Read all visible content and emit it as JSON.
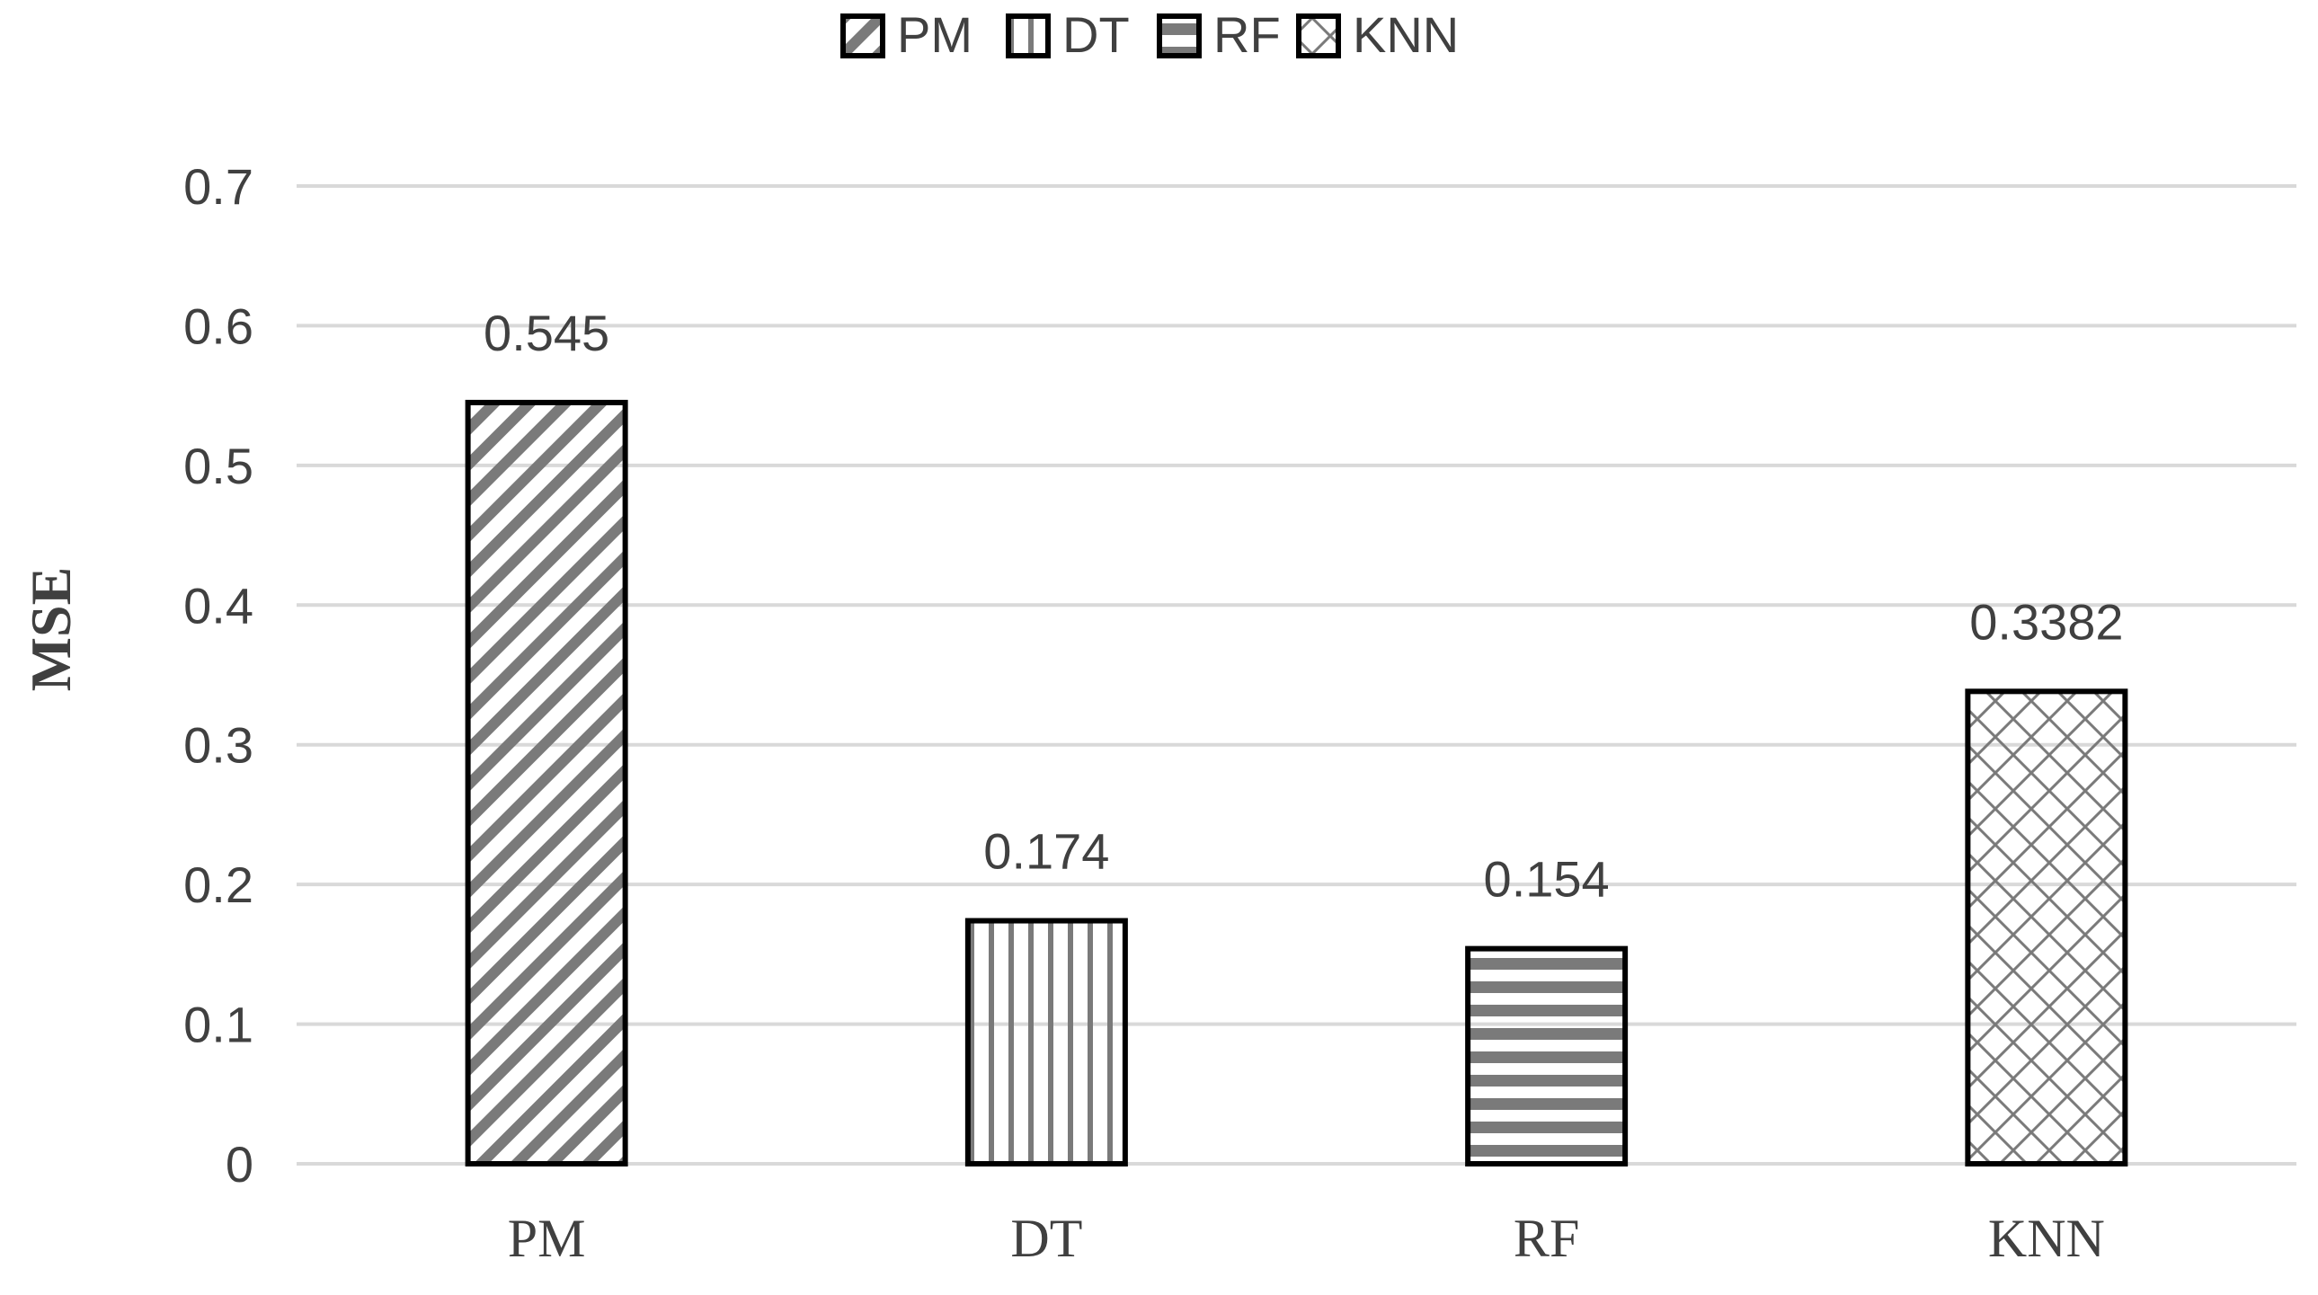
{
  "chart_data": {
    "type": "bar",
    "categories": [
      "PM",
      "DT",
      "RF",
      "KNN"
    ],
    "values": [
      0.545,
      0.174,
      0.154,
      0.3382
    ],
    "data_labels": [
      "0.545",
      "0.174",
      "0.154",
      "0.3382"
    ],
    "series": [
      {
        "name": "PM",
        "pattern": "diagonal-hatch"
      },
      {
        "name": "DT",
        "pattern": "vertical-hatch"
      },
      {
        "name": "RF",
        "pattern": "horizontal-hatch"
      },
      {
        "name": "KNN",
        "pattern": "crosshatch"
      }
    ],
    "ylabel": "MSE",
    "xlabel": "",
    "ylim": [
      0,
      0.7
    ],
    "yticks": [
      "0",
      "0.1",
      "0.2",
      "0.3",
      "0.4",
      "0.5",
      "0.6",
      "0.7"
    ],
    "grid": true,
    "legend_position": "top-center",
    "colors": {
      "pattern": "#7a7a7a",
      "outline": "#000000",
      "grid": "#d9d9d9",
      "text": "#404040"
    }
  }
}
